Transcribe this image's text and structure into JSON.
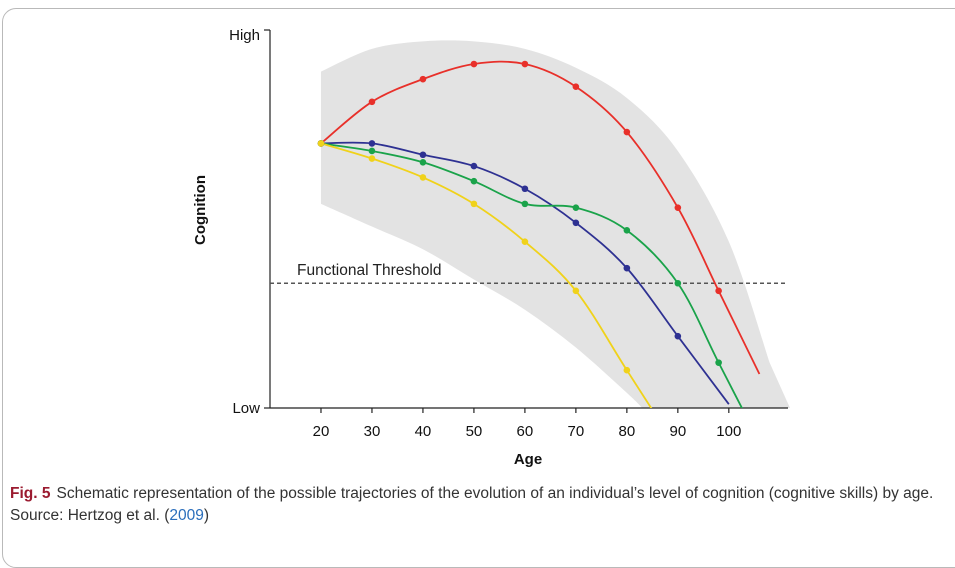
{
  "caption": {
    "label": "Fig. 5",
    "text": "Schematic representation of the possible trajectories of the evolution of an individual’s level of cognition (cognitive skills) by age. Source: Hertzog et al. (",
    "year": "2009",
    "close": ")"
  },
  "chart_data": {
    "type": "line",
    "xlabel": "Age",
    "ylabel": "Cognition",
    "x_ticks": [
      20,
      30,
      40,
      50,
      60,
      70,
      80,
      90,
      100
    ],
    "y_tick_labels": {
      "high": "High",
      "low": "Low"
    },
    "xlim": [
      10,
      112
    ],
    "ylim": [
      0,
      100
    ],
    "grid": false,
    "threshold": {
      "label": "Functional Threshold",
      "y": 33
    },
    "band": {
      "color": "#e3e3e3",
      "upper": [
        [
          20,
          89
        ],
        [
          30,
          95
        ],
        [
          40,
          97
        ],
        [
          50,
          97
        ],
        [
          60,
          95
        ],
        [
          70,
          90
        ],
        [
          80,
          82
        ],
        [
          90,
          68
        ],
        [
          100,
          44
        ],
        [
          108,
          12
        ]
      ],
      "lower": [
        [
          20,
          54
        ],
        [
          30,
          48
        ],
        [
          40,
          42
        ],
        [
          50,
          34
        ],
        [
          60,
          26
        ],
        [
          70,
          16
        ],
        [
          80,
          4
        ],
        [
          83,
          0
        ]
      ]
    },
    "series": [
      {
        "color": "#e8302a",
        "x": [
          20,
          30,
          40,
          50,
          60,
          70,
          80,
          90,
          98
        ],
        "y": [
          70,
          81,
          87,
          91,
          91,
          85,
          73,
          53,
          31
        ]
      },
      {
        "color": "#2e3192",
        "x": [
          20,
          30,
          40,
          50,
          60,
          70,
          80,
          90
        ],
        "y": [
          70,
          70,
          67,
          64,
          58,
          49,
          37,
          19
        ]
      },
      {
        "color": "#1aa34a",
        "x": [
          20,
          30,
          40,
          50,
          60,
          70,
          80,
          90,
          98
        ],
        "y": [
          70,
          68,
          65,
          60,
          54,
          53,
          47,
          33,
          12
        ]
      },
      {
        "color": "#f0d21a",
        "x": [
          20,
          30,
          40,
          50,
          60,
          70,
          80
        ],
        "y": [
          70,
          66,
          61,
          54,
          44,
          31,
          10
        ]
      }
    ]
  }
}
